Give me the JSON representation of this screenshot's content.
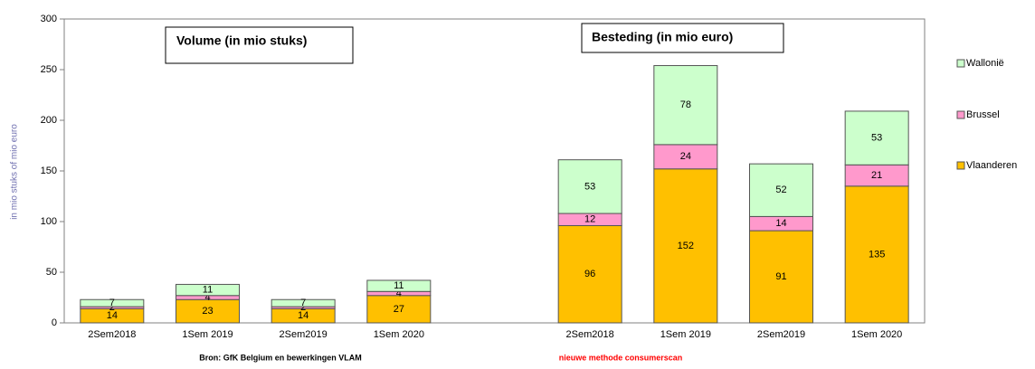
{
  "chart_data": {
    "type": "stacked_bar",
    "categories": [
      "2Sem2018",
      "1Sem 2019",
      "2Sem2019",
      "1Sem 2020",
      null,
      "2Sem2018",
      "1Sem 2019",
      "2Sem2019",
      "1Sem 2020"
    ],
    "series": [
      {
        "name": "Vlaanderen",
        "color": "#ffc000",
        "values": [
          14,
          23,
          14,
          27,
          null,
          96,
          152,
          91,
          135
        ]
      },
      {
        "name": "Brussel",
        "color": "#ff99cc",
        "values": [
          2,
          4,
          2,
          4,
          null,
          12,
          24,
          14,
          21
        ]
      },
      {
        "name": "Wallonië",
        "color": "#ccffcc",
        "values": [
          7,
          11,
          7,
          11,
          null,
          53,
          78,
          52,
          53
        ]
      }
    ],
    "ylabel": "in mio stuks of mio euro",
    "ylim": [
      0,
      300
    ],
    "yticks": [
      0,
      50,
      100,
      150,
      200,
      250,
      300
    ],
    "legend": "right",
    "annotations": [
      "Volume (in mio stuks)",
      "Besteding (in mio euro)"
    ],
    "footnotes": [
      "Bron: GfK Belgium  en bewerkingen  VLAM",
      "nieuwe methode consumerscan"
    ]
  }
}
